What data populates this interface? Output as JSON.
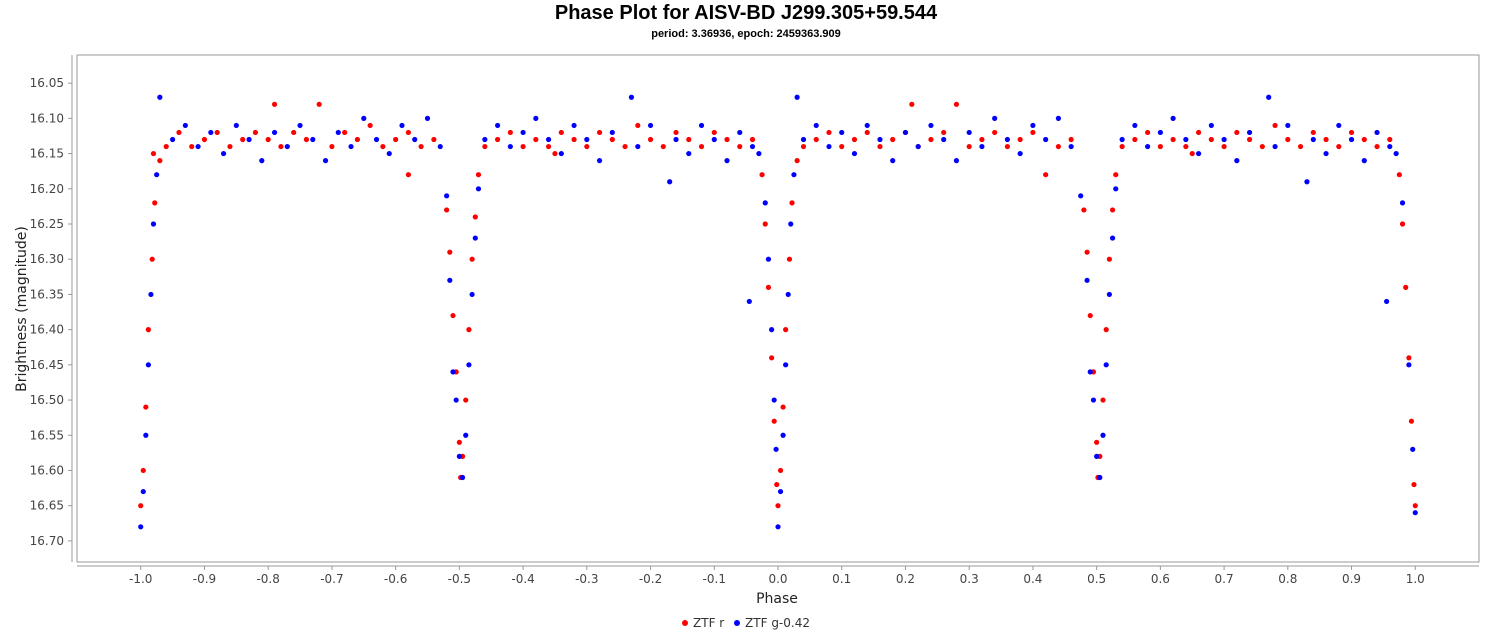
{
  "chart_data": {
    "type": "scatter",
    "title": "Phase Plot for AISV-BD J299.305+59.544",
    "subtitle": "period: 3.36936, epoch: 2459363.909",
    "xlabel": "Phase",
    "ylabel": "Brightness (magnitude)",
    "xlim": [
      -1.1,
      1.1
    ],
    "ylim": [
      16.01,
      16.73
    ],
    "y_inverted": true,
    "grid": false,
    "legend_position": "bottom-center",
    "x_ticks": [
      -1.0,
      -0.9,
      -0.8,
      -0.7,
      -0.6,
      -0.5,
      -0.4,
      -0.3,
      -0.2,
      -0.1,
      0.0,
      0.1,
      0.2,
      0.3,
      0.4,
      0.5,
      0.6,
      0.7,
      0.8,
      0.9,
      1.0
    ],
    "x_tick_labels": [
      "-1.0",
      "-0.9",
      "-0.8",
      "-0.7",
      "-0.6",
      "-0.5",
      "-0.4",
      "-0.3",
      "-0.2",
      "-0.1",
      "0.0",
      "0.1",
      "0.2",
      "0.3",
      "0.4",
      "0.5",
      "0.6",
      "0.7",
      "0.8",
      "0.9",
      "1.0"
    ],
    "y_ticks": [
      16.05,
      16.1,
      16.15,
      16.2,
      16.25,
      16.3,
      16.35,
      16.4,
      16.45,
      16.5,
      16.55,
      16.6,
      16.65,
      16.7
    ],
    "y_tick_labels": [
      "16.05",
      "16.10",
      "16.15",
      "16.20",
      "16.25",
      "16.30",
      "16.35",
      "16.40",
      "16.45",
      "16.50",
      "16.55",
      "16.60",
      "16.65",
      "16.70"
    ],
    "series": [
      {
        "name": "ZTF r",
        "color": "#ff0000",
        "points": [
          [
            -0.98,
            16.15
          ],
          [
            -0.96,
            16.14
          ],
          [
            -0.94,
            16.12
          ],
          [
            -0.92,
            16.14
          ],
          [
            -0.9,
            16.13
          ],
          [
            -0.88,
            16.12
          ],
          [
            -0.86,
            16.14
          ],
          [
            -0.84,
            16.13
          ],
          [
            -0.82,
            16.12
          ],
          [
            -0.8,
            16.13
          ],
          [
            -0.79,
            16.08
          ],
          [
            -0.78,
            16.14
          ],
          [
            -0.76,
            16.12
          ],
          [
            -0.74,
            16.13
          ],
          [
            -0.72,
            16.08
          ],
          [
            -0.7,
            16.14
          ],
          [
            -0.68,
            16.12
          ],
          [
            -0.66,
            16.13
          ],
          [
            -0.64,
            16.11
          ],
          [
            -0.62,
            16.14
          ],
          [
            -0.6,
            16.13
          ],
          [
            -0.58,
            16.12
          ],
          [
            -0.56,
            16.14
          ],
          [
            -0.54,
            16.13
          ],
          [
            -0.58,
            16.18
          ],
          [
            -0.52,
            16.23
          ],
          [
            -0.515,
            16.29
          ],
          [
            -0.51,
            16.38
          ],
          [
            -0.505,
            16.46
          ],
          [
            -0.5,
            16.56
          ],
          [
            -0.498,
            16.61
          ],
          [
            -0.495,
            16.58
          ],
          [
            -0.49,
            16.5
          ],
          [
            -0.485,
            16.4
          ],
          [
            -0.48,
            16.3
          ],
          [
            -0.475,
            16.24
          ],
          [
            -0.47,
            16.18
          ],
          [
            -0.46,
            16.14
          ],
          [
            -0.44,
            16.13
          ],
          [
            -0.42,
            16.12
          ],
          [
            -0.4,
            16.14
          ],
          [
            -0.38,
            16.13
          ],
          [
            -0.36,
            16.14
          ],
          [
            -0.35,
            16.15
          ],
          [
            -0.34,
            16.12
          ],
          [
            -0.32,
            16.13
          ],
          [
            -0.3,
            16.14
          ],
          [
            -0.28,
            16.12
          ],
          [
            -0.26,
            16.13
          ],
          [
            -0.24,
            16.14
          ],
          [
            -0.22,
            16.11
          ],
          [
            -0.2,
            16.13
          ],
          [
            -0.18,
            16.14
          ],
          [
            -0.16,
            16.12
          ],
          [
            -0.14,
            16.13
          ],
          [
            -0.12,
            16.14
          ],
          [
            -0.1,
            16.12
          ],
          [
            -0.08,
            16.13
          ],
          [
            -0.06,
            16.14
          ],
          [
            -0.04,
            16.13
          ],
          [
            -0.025,
            16.18
          ],
          [
            -0.02,
            16.25
          ],
          [
            -0.015,
            16.34
          ],
          [
            -0.01,
            16.44
          ],
          [
            -0.006,
            16.53
          ],
          [
            -0.002,
            16.62
          ],
          [
            0.0,
            16.65
          ],
          [
            0.004,
            16.6
          ],
          [
            0.008,
            16.51
          ],
          [
            0.012,
            16.4
          ],
          [
            0.018,
            16.3
          ],
          [
            0.022,
            16.22
          ],
          [
            0.03,
            16.16
          ],
          [
            0.04,
            16.14
          ],
          [
            0.06,
            16.13
          ],
          [
            0.08,
            16.12
          ],
          [
            0.1,
            16.14
          ],
          [
            0.12,
            16.13
          ],
          [
            0.14,
            16.12
          ],
          [
            0.16,
            16.14
          ],
          [
            0.18,
            16.13
          ],
          [
            0.2,
            16.12
          ],
          [
            0.21,
            16.08
          ],
          [
            0.22,
            16.14
          ],
          [
            0.24,
            16.13
          ],
          [
            0.26,
            16.12
          ],
          [
            0.28,
            16.08
          ],
          [
            0.3,
            16.14
          ],
          [
            0.32,
            16.13
          ],
          [
            0.34,
            16.12
          ],
          [
            0.36,
            16.14
          ],
          [
            0.38,
            16.13
          ],
          [
            0.4,
            16.12
          ],
          [
            0.42,
            16.18
          ],
          [
            0.44,
            16.14
          ],
          [
            0.46,
            16.13
          ],
          [
            0.48,
            16.23
          ],
          [
            0.485,
            16.29
          ],
          [
            0.49,
            16.38
          ],
          [
            0.495,
            16.46
          ],
          [
            0.5,
            16.56
          ],
          [
            0.502,
            16.61
          ],
          [
            0.505,
            16.58
          ],
          [
            0.51,
            16.5
          ],
          [
            0.515,
            16.4
          ],
          [
            0.52,
            16.3
          ],
          [
            0.525,
            16.23
          ],
          [
            0.53,
            16.18
          ],
          [
            0.54,
            16.14
          ],
          [
            0.56,
            16.13
          ],
          [
            0.58,
            16.12
          ],
          [
            0.6,
            16.14
          ],
          [
            0.62,
            16.13
          ],
          [
            0.64,
            16.14
          ],
          [
            0.65,
            16.15
          ],
          [
            0.66,
            16.12
          ],
          [
            0.68,
            16.13
          ],
          [
            0.7,
            16.14
          ],
          [
            0.72,
            16.12
          ],
          [
            0.74,
            16.13
          ],
          [
            0.76,
            16.14
          ],
          [
            0.78,
            16.11
          ],
          [
            0.8,
            16.13
          ],
          [
            0.82,
            16.14
          ],
          [
            0.84,
            16.12
          ],
          [
            0.86,
            16.13
          ],
          [
            0.88,
            16.14
          ],
          [
            0.9,
            16.12
          ],
          [
            0.92,
            16.13
          ],
          [
            0.94,
            16.14
          ],
          [
            0.96,
            16.13
          ],
          [
            0.975,
            16.18
          ],
          [
            0.98,
            16.25
          ],
          [
            0.985,
            16.34
          ],
          [
            0.99,
            16.44
          ],
          [
            0.994,
            16.53
          ],
          [
            0.998,
            16.62
          ],
          [
            1.0,
            16.65
          ],
          [
            -1.0,
            16.65
          ],
          [
            -0.996,
            16.6
          ],
          [
            -0.992,
            16.51
          ],
          [
            -0.988,
            16.4
          ],
          [
            -0.982,
            16.3
          ],
          [
            -0.978,
            16.22
          ],
          [
            -0.97,
            16.16
          ]
        ]
      },
      {
        "name": "ZTF g-0.42",
        "color": "#0000ff",
        "points": [
          [
            -0.97,
            16.07
          ],
          [
            -0.95,
            16.13
          ],
          [
            -0.93,
            16.11
          ],
          [
            -0.91,
            16.14
          ],
          [
            -0.89,
            16.12
          ],
          [
            -0.87,
            16.15
          ],
          [
            -0.85,
            16.11
          ],
          [
            -0.83,
            16.13
          ],
          [
            -0.81,
            16.16
          ],
          [
            -0.79,
            16.12
          ],
          [
            -0.77,
            16.14
          ],
          [
            -0.75,
            16.11
          ],
          [
            -0.73,
            16.13
          ],
          [
            -0.71,
            16.16
          ],
          [
            -0.69,
            16.12
          ],
          [
            -0.67,
            16.14
          ],
          [
            -0.65,
            16.1
          ],
          [
            -0.63,
            16.13
          ],
          [
            -0.61,
            16.15
          ],
          [
            -0.59,
            16.11
          ],
          [
            -0.57,
            16.13
          ],
          [
            -0.55,
            16.1
          ],
          [
            -0.53,
            16.14
          ],
          [
            -0.52,
            16.21
          ],
          [
            -0.515,
            16.33
          ],
          [
            -0.51,
            16.46
          ],
          [
            -0.505,
            16.5
          ],
          [
            -0.5,
            16.58
          ],
          [
            -0.495,
            16.61
          ],
          [
            -0.49,
            16.55
          ],
          [
            -0.485,
            16.45
          ],
          [
            -0.48,
            16.35
          ],
          [
            -0.475,
            16.27
          ],
          [
            -0.47,
            16.2
          ],
          [
            -0.46,
            16.13
          ],
          [
            -0.44,
            16.11
          ],
          [
            -0.42,
            16.14
          ],
          [
            -0.4,
            16.12
          ],
          [
            -0.38,
            16.1
          ],
          [
            -0.36,
            16.13
          ],
          [
            -0.34,
            16.15
          ],
          [
            -0.32,
            16.11
          ],
          [
            -0.3,
            16.13
          ],
          [
            -0.28,
            16.16
          ],
          [
            -0.26,
            16.12
          ],
          [
            -0.23,
            16.07
          ],
          [
            -0.22,
            16.14
          ],
          [
            -0.2,
            16.11
          ],
          [
            -0.17,
            16.19
          ],
          [
            -0.16,
            16.13
          ],
          [
            -0.14,
            16.15
          ],
          [
            -0.12,
            16.11
          ],
          [
            -0.1,
            16.13
          ],
          [
            -0.08,
            16.16
          ],
          [
            -0.06,
            16.12
          ],
          [
            -0.04,
            16.14
          ],
          [
            -0.045,
            16.36
          ],
          [
            -0.03,
            16.15
          ],
          [
            -0.02,
            16.22
          ],
          [
            -0.015,
            16.3
          ],
          [
            -0.01,
            16.4
          ],
          [
            -0.006,
            16.5
          ],
          [
            -0.003,
            16.57
          ],
          [
            0.0,
            16.68
          ],
          [
            0.004,
            16.63
          ],
          [
            0.008,
            16.55
          ],
          [
            0.012,
            16.45
          ],
          [
            0.016,
            16.35
          ],
          [
            0.02,
            16.25
          ],
          [
            0.025,
            16.18
          ],
          [
            0.03,
            16.07
          ],
          [
            0.04,
            16.13
          ],
          [
            0.06,
            16.11
          ],
          [
            0.08,
            16.14
          ],
          [
            0.1,
            16.12
          ],
          [
            0.12,
            16.15
          ],
          [
            0.14,
            16.11
          ],
          [
            0.16,
            16.13
          ],
          [
            0.18,
            16.16
          ],
          [
            0.2,
            16.12
          ],
          [
            0.22,
            16.14
          ],
          [
            0.24,
            16.11
          ],
          [
            0.26,
            16.13
          ],
          [
            0.28,
            16.16
          ],
          [
            0.3,
            16.12
          ],
          [
            0.32,
            16.14
          ],
          [
            0.34,
            16.1
          ],
          [
            0.36,
            16.13
          ],
          [
            0.38,
            16.15
          ],
          [
            0.4,
            16.11
          ],
          [
            0.42,
            16.13
          ],
          [
            0.44,
            16.1
          ],
          [
            0.46,
            16.14
          ],
          [
            0.475,
            16.21
          ],
          [
            0.485,
            16.33
          ],
          [
            0.49,
            16.46
          ],
          [
            0.495,
            16.5
          ],
          [
            0.5,
            16.58
          ],
          [
            0.505,
            16.61
          ],
          [
            0.51,
            16.55
          ],
          [
            0.515,
            16.45
          ],
          [
            0.52,
            16.35
          ],
          [
            0.525,
            16.27
          ],
          [
            0.53,
            16.2
          ],
          [
            0.54,
            16.13
          ],
          [
            0.56,
            16.11
          ],
          [
            0.58,
            16.14
          ],
          [
            0.6,
            16.12
          ],
          [
            0.62,
            16.1
          ],
          [
            0.64,
            16.13
          ],
          [
            0.66,
            16.15
          ],
          [
            0.68,
            16.11
          ],
          [
            0.7,
            16.13
          ],
          [
            0.72,
            16.16
          ],
          [
            0.74,
            16.12
          ],
          [
            0.77,
            16.07
          ],
          [
            0.78,
            16.14
          ],
          [
            0.8,
            16.11
          ],
          [
            0.83,
            16.19
          ],
          [
            0.84,
            16.13
          ],
          [
            0.86,
            16.15
          ],
          [
            0.88,
            16.11
          ],
          [
            0.9,
            16.13
          ],
          [
            0.92,
            16.16
          ],
          [
            0.94,
            16.12
          ],
          [
            0.955,
            16.36
          ],
          [
            0.96,
            16.14
          ],
          [
            0.97,
            16.15
          ],
          [
            0.98,
            16.22
          ],
          [
            0.99,
            16.45
          ],
          [
            0.996,
            16.57
          ],
          [
            1.0,
            16.66
          ],
          [
            -1.0,
            16.68
          ],
          [
            -0.996,
            16.63
          ],
          [
            -0.992,
            16.55
          ],
          [
            -0.988,
            16.45
          ],
          [
            -0.984,
            16.35
          ],
          [
            -0.98,
            16.25
          ],
          [
            -0.975,
            16.18
          ]
        ]
      }
    ]
  }
}
